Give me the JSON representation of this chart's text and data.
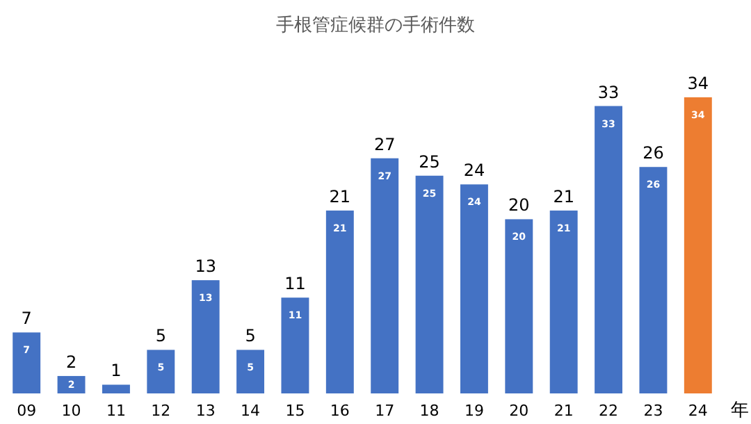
{
  "chart_data": {
    "type": "bar",
    "title": "手根管症候群の手術件数",
    "xlabel": "年",
    "categories": [
      "09",
      "10",
      "11",
      "12",
      "13",
      "14",
      "15",
      "16",
      "17",
      "18",
      "19",
      "20",
      "21",
      "22",
      "23",
      "24"
    ],
    "values": [
      7,
      2,
      1,
      5,
      13,
      5,
      11,
      21,
      27,
      25,
      24,
      20,
      21,
      33,
      26,
      34
    ],
    "value_labels": [
      "7",
      "2",
      null,
      "5",
      "13",
      "5",
      "11",
      "21",
      "27",
      "25",
      "24",
      "20",
      "21",
      "33",
      "26",
      "34"
    ],
    "colors": [
      "#4472c4",
      "#4472c4",
      "#4472c4",
      "#4472c4",
      "#4472c4",
      "#4472c4",
      "#4472c4",
      "#4472c4",
      "#4472c4",
      "#4472c4",
      "#4472c4",
      "#4472c4",
      "#4472c4",
      "#4472c4",
      "#4472c4",
      "#ed7d31"
    ],
    "annotations": [
      {
        "text": "7",
        "x": "09",
        "y": 7
      },
      {
        "text": "2",
        "x": "10",
        "y": 2
      },
      {
        "text": "1",
        "x": "11",
        "y": 1
      },
      {
        "text": "5",
        "x": "12",
        "y": 5
      },
      {
        "text": "13",
        "x": "13",
        "y": 13
      },
      {
        "text": "5",
        "x": "14",
        "y": 5
      },
      {
        "text": "11",
        "x": "15",
        "y": 11
      },
      {
        "text": "21",
        "x": "16",
        "y": 21
      },
      {
        "text": "27",
        "x": "17",
        "y": 27
      },
      {
        "text": "25",
        "x": "18",
        "y": 25
      },
      {
        "text": "24",
        "x": "19",
        "y": 24
      },
      {
        "text": "20",
        "x": "20",
        "y": 20
      },
      {
        "text": "21",
        "x": "21",
        "y": 21
      },
      {
        "text": "33",
        "x": "22",
        "y": 33
      },
      {
        "text": "26",
        "x": "23",
        "y": 26
      },
      {
        "text": "34",
        "x": "24",
        "y": 34
      }
    ]
  }
}
